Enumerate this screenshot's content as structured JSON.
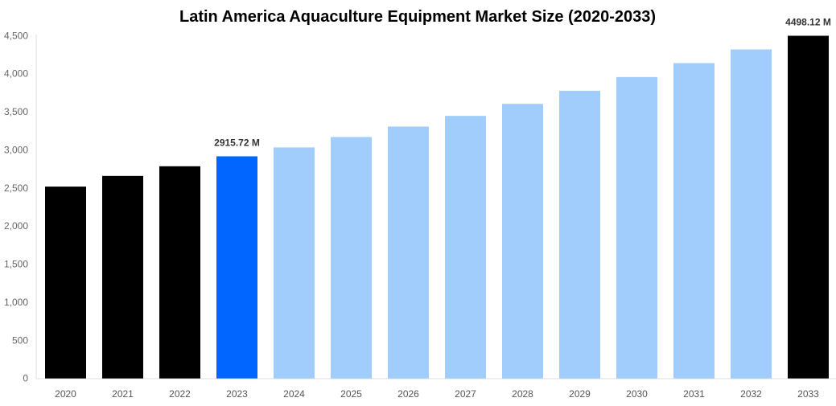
{
  "chart_data": {
    "type": "bar",
    "title": "Latin America Aquaculture Equipment Market Size (2020-2033)",
    "xlabel": "",
    "ylabel": "",
    "ylim": [
      0,
      4500
    ],
    "yticks": [
      "0",
      "500",
      "1,000",
      "1,500",
      "2,000",
      "2,500",
      "3,000",
      "3,500",
      "4,000",
      "4,500"
    ],
    "grid": false,
    "categories": [
      "2020",
      "2021",
      "2022",
      "2023",
      "2024",
      "2025",
      "2026",
      "2027",
      "2028",
      "2029",
      "2030",
      "2031",
      "2032",
      "2033"
    ],
    "values": [
      2518,
      2658,
      2785,
      2915.72,
      3032,
      3169,
      3306,
      3446,
      3604,
      3776,
      3956,
      4139,
      4319,
      4498.12
    ],
    "bar_colors": [
      "#000000",
      "#000000",
      "#000000",
      "#0066ff",
      "#a1cdfd",
      "#a1cdfd",
      "#a1cdfd",
      "#a1cdfd",
      "#a1cdfd",
      "#a1cdfd",
      "#a1cdfd",
      "#a1cdfd",
      "#a1cdfd",
      "#000000"
    ],
    "data_labels": [
      {
        "category": "2023",
        "text": "2915.72 M"
      },
      {
        "category": "2033",
        "text": "4498.12 M"
      }
    ]
  }
}
